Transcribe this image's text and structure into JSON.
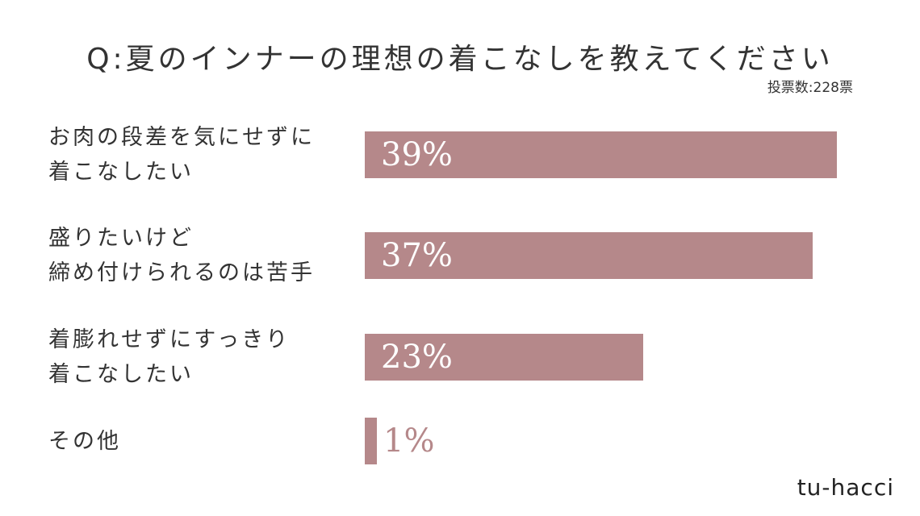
{
  "chart_data": {
    "type": "bar",
    "orientation": "horizontal",
    "title": "Q:夏のインナーの理想の着こなしを教えてください",
    "subtitle": "投票数:228票",
    "categories": [
      "お肉の段差を気にせずに\n着こなしたい",
      "盛りたいけど\n締め付けられるのは苦手",
      "着膨れせずにすっきり\n着こなしたい",
      "その他"
    ],
    "values": [
      39,
      37,
      23,
      1
    ],
    "value_labels": [
      "39%",
      "37%",
      "23%",
      "1%"
    ],
    "color": "#b5888a",
    "brand": "tu-hacci"
  }
}
